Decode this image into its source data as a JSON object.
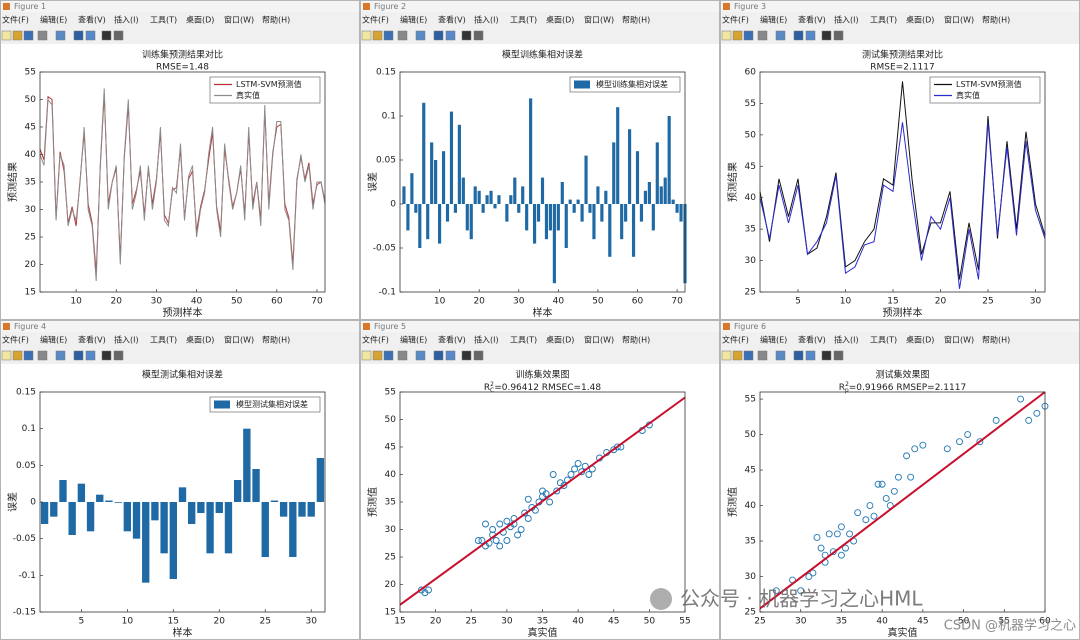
{
  "windows": [
    {
      "title": "Figure 1"
    },
    {
      "title": "Figure 2"
    },
    {
      "title": "Figure 3"
    },
    {
      "title": "Figure 4"
    },
    {
      "title": "Figure 5"
    },
    {
      "title": "Figure 6"
    }
  ],
  "menu": [
    "文件(F)",
    "编辑(E)",
    "查看(V)",
    "插入(I)",
    "工具(T)",
    "桌面(D)",
    "窗口(W)",
    "帮助(H)"
  ],
  "watermark": [
    "公众号 · 机器学习之心HML",
    "CSDN @机器学习之心"
  ],
  "chart_data": [
    {
      "type": "line",
      "title": "训练集预测结果对比",
      "subtitle": "RMSE=1.48",
      "xlabel": "预测样本",
      "ylabel": "预测结果",
      "legend": "upper right",
      "x": [
        1,
        2,
        3,
        4,
        5,
        6,
        7,
        8,
        9,
        10,
        11,
        12,
        13,
        14,
        15,
        16,
        17,
        18,
        19,
        20,
        21,
        22,
        23,
        24,
        25,
        26,
        27,
        28,
        29,
        30,
        31,
        32,
        33,
        34,
        35,
        36,
        37,
        38,
        39,
        40,
        41,
        42,
        43,
        44,
        45,
        46,
        47,
        48,
        49,
        50,
        51,
        52,
        53,
        54,
        55,
        56,
        57,
        58,
        59,
        60,
        61,
        62,
        63,
        64,
        65,
        66,
        67,
        68,
        69,
        70,
        71,
        72
      ],
      "xlim": [
        1,
        72
      ],
      "xticks": [
        10,
        20,
        30,
        40,
        50,
        60,
        70
      ],
      "ylim": [
        15,
        55
      ],
      "yticks": [
        15,
        20,
        25,
        30,
        35,
        40,
        45,
        50,
        55
      ],
      "series": [
        {
          "name": "LSTM-SVM预测值",
          "color": "#b83232",
          "values": [
            41,
            39,
            50.5,
            50,
            28.5,
            40.5,
            37,
            27.5,
            30.5,
            27,
            35.5,
            44,
            31,
            27.5,
            18.5,
            37.5,
            51,
            31,
            35,
            37.5,
            21,
            39.5,
            49,
            31,
            33.5,
            37,
            29,
            37.5,
            31,
            35.5,
            44,
            29,
            27.5,
            33.5,
            34,
            41,
            28.5,
            35.5,
            37,
            26,
            30.5,
            33.5,
            39,
            44,
            30.5,
            26,
            41,
            35.5,
            30.5,
            33,
            37.5,
            29,
            44,
            31,
            35,
            28,
            48,
            31,
            40.5,
            45,
            45.5,
            31,
            28.5,
            20,
            35.5,
            39.5,
            35.5,
            38.5,
            31,
            34.5,
            35,
            31.5
          ]
        },
        {
          "name": "真实值",
          "color": "#8c8c8c",
          "values": [
            40,
            38,
            50,
            49,
            28,
            40,
            38,
            27,
            30,
            28,
            35,
            45,
            30,
            27,
            17,
            38,
            52,
            30,
            35,
            38,
            20,
            40,
            50,
            30,
            33,
            38,
            28,
            38,
            30,
            35,
            45,
            28,
            27,
            34,
            33,
            42,
            28,
            36,
            38,
            25,
            30,
            33,
            40,
            45,
            30,
            25,
            42,
            35,
            30,
            33,
            38,
            28,
            45,
            30,
            35,
            27,
            49,
            30,
            40,
            46,
            46,
            30,
            28,
            19,
            35,
            40,
            35,
            38,
            30,
            35,
            35,
            31
          ]
        }
      ]
    },
    {
      "type": "bar",
      "title": "模型训练集相对误差",
      "xlabel": "样本",
      "ylabel": "误差",
      "legend": "upper right",
      "x": [
        1,
        2,
        3,
        4,
        5,
        6,
        7,
        8,
        9,
        10,
        11,
        12,
        13,
        14,
        15,
        16,
        17,
        18,
        19,
        20,
        21,
        22,
        23,
        24,
        25,
        26,
        27,
        28,
        29,
        30,
        31,
        32,
        33,
        34,
        35,
        36,
        37,
        38,
        39,
        40,
        41,
        42,
        43,
        44,
        45,
        46,
        47,
        48,
        49,
        50,
        51,
        52,
        53,
        54,
        55,
        56,
        57,
        58,
        59,
        60,
        61,
        62,
        63,
        64,
        65,
        66,
        67,
        68,
        69,
        70,
        71,
        72
      ],
      "xlim": [
        0,
        72
      ],
      "xticks": [
        10,
        20,
        30,
        40,
        50,
        60,
        70
      ],
      "ylim": [
        -0.1,
        0.15
      ],
      "yticks": [
        -0.1,
        -0.05,
        0,
        0.05,
        0.1,
        0.15
      ],
      "series": [
        {
          "name": "模型训练集相对误差",
          "color": "#1f6aa5",
          "values": [
            0.02,
            -0.03,
            0.035,
            -0.01,
            -0.05,
            0.115,
            -0.04,
            0.07,
            0.05,
            -0.045,
            0.06,
            -0.02,
            0.105,
            -0.01,
            0.09,
            0.03,
            -0.03,
            -0.04,
            0.02,
            0.015,
            -0.01,
            0.01,
            0.015,
            -0.005,
            0.01,
            0,
            -0.02,
            0.01,
            0.03,
            -0.01,
            0.02,
            -0.03,
            0.12,
            -0.045,
            -0.02,
            0.03,
            -0.04,
            -0.03,
            -0.09,
            -0.03,
            0.025,
            -0.05,
            0.005,
            -0.01,
            0.005,
            -0.02,
            0.055,
            -0.01,
            -0.04,
            0.02,
            -0.02,
            0.015,
            -0.06,
            0.07,
            0.11,
            -0.04,
            -0.02,
            0.085,
            -0.06,
            0.06,
            -0.02,
            0.015,
            0.025,
            -0.03,
            0.07,
            0.02,
            0.03,
            0.1,
            0.005,
            -0.01,
            -0.02,
            -0.09
          ]
        }
      ]
    },
    {
      "type": "line",
      "title": "测试集预测结果对比",
      "subtitle": "RMSE=2.1117",
      "xlabel": "预测样本",
      "ylabel": "预测结果",
      "legend": "upper right",
      "x": [
        1,
        2,
        3,
        4,
        5,
        6,
        7,
        8,
        9,
        10,
        11,
        12,
        13,
        14,
        15,
        16,
        17,
        18,
        19,
        20,
        21,
        22,
        23,
        24,
        25,
        26,
        27,
        28,
        29,
        30,
        31
      ],
      "xlim": [
        1,
        31
      ],
      "xticks": [
        5,
        10,
        15,
        20,
        25,
        30
      ],
      "ylim": [
        25,
        60
      ],
      "yticks": [
        25,
        30,
        35,
        40,
        45,
        50,
        55,
        60
      ],
      "series": [
        {
          "name": "LSTM-SVM预测值",
          "color": "#111111",
          "values": [
            41,
            33,
            43,
            37,
            43,
            31,
            32,
            37,
            44,
            29,
            30,
            33,
            35,
            43,
            42,
            58.5,
            43,
            31,
            36,
            36,
            41,
            27,
            36,
            28.5,
            53,
            33.5,
            49,
            35,
            50.5,
            39,
            34
          ]
        },
        {
          "name": "真实值",
          "color": "#2b2bd0",
          "values": [
            40,
            33.5,
            42,
            36,
            42,
            31,
            33,
            36,
            43.5,
            28,
            29,
            32.5,
            33,
            42,
            41,
            52,
            40,
            30,
            37,
            35,
            40,
            25.5,
            35,
            27,
            52,
            34,
            48,
            34,
            49,
            38,
            33.5
          ]
        }
      ]
    },
    {
      "type": "bar",
      "title": "模型测试集相对误差",
      "xlabel": "样本",
      "ylabel": "误差",
      "legend": "upper right",
      "x": [
        1,
        2,
        3,
        4,
        5,
        6,
        7,
        8,
        9,
        10,
        11,
        12,
        13,
        14,
        15,
        16,
        17,
        18,
        19,
        20,
        21,
        22,
        23,
        24,
        25,
        26,
        27,
        28,
        29,
        30,
        31
      ],
      "xlim": [
        0.5,
        31.5
      ],
      "xticks": [
        5,
        10,
        15,
        20,
        25,
        30
      ],
      "ylim": [
        -0.15,
        0.15
      ],
      "yticks": [
        -0.15,
        -0.1,
        -0.05,
        0,
        0.05,
        0.1,
        0.15
      ],
      "series": [
        {
          "name": "模型测试集相对误差",
          "color": "#1f6aa5",
          "values": [
            -0.03,
            -0.02,
            0.03,
            -0.045,
            0.025,
            -0.04,
            0.01,
            0.002,
            -0.001,
            -0.04,
            -0.05,
            -0.11,
            -0.025,
            -0.07,
            -0.105,
            0.02,
            -0.03,
            -0.015,
            -0.07,
            -0.015,
            -0.07,
            0.03,
            0.1,
            0.045,
            -0.075,
            0.002,
            -0.02,
            -0.075,
            -0.02,
            -0.02,
            0.06
          ]
        }
      ]
    },
    {
      "type": "scatter",
      "title": "训练集效果图",
      "subtitle": [
        "R",
        "2",
        "C",
        "=0.96412  RMSEC=1.48"
      ],
      "xlabel": "真实值",
      "ylabel": "预测值",
      "color": "#1f77b4",
      "x": [
        18,
        18.5,
        19,
        26,
        26.5,
        27,
        27,
        27.5,
        28,
        28,
        28.5,
        29,
        29,
        29.5,
        30,
        30,
        30.5,
        31,
        31,
        31.5,
        32,
        32.5,
        33,
        33,
        33.5,
        34,
        34.5,
        35,
        35,
        35.5,
        36,
        36.5,
        37,
        37.5,
        38,
        38.5,
        39,
        39.5,
        40,
        40.5,
        41,
        41.5,
        42,
        43,
        44,
        45,
        45.5,
        46,
        49,
        50
      ],
      "values": [
        19,
        18.5,
        19,
        28,
        28,
        27,
        31,
        27.5,
        29,
        30,
        28,
        27,
        31,
        29.5,
        28,
        31.5,
        30.5,
        31,
        32,
        29,
        30,
        33,
        32,
        35.5,
        34,
        33.5,
        35,
        36,
        37,
        36.5,
        35,
        40,
        37,
        38.5,
        38,
        39,
        40,
        41,
        42,
        40.5,
        41.5,
        40,
        41,
        43,
        44,
        44.5,
        45,
        45,
        48,
        49
      ],
      "fit_line": {
        "color": "#c8102e",
        "x": [
          15,
          55
        ],
        "y": [
          16.3,
          54
        ]
      },
      "xlim": [
        15,
        55
      ],
      "xticks": [
        15,
        20,
        25,
        30,
        35,
        40,
        45,
        50,
        55
      ],
      "ylim": [
        15,
        55
      ],
      "yticks": [
        15,
        20,
        25,
        30,
        35,
        40,
        45,
        50,
        55
      ]
    },
    {
      "type": "scatter",
      "title": "测试集效果图",
      "subtitle": [
        "R",
        "2",
        "p",
        "=0.91966  RMSEP=2.1117"
      ],
      "xlabel": "真实值",
      "ylabel": "预测值",
      "color": "#1f77b4",
      "x": [
        27,
        29,
        30,
        31,
        31.5,
        32,
        32.5,
        33,
        33,
        33.5,
        34,
        34.5,
        35,
        35,
        35.5,
        36,
        36.5,
        37,
        38,
        38.5,
        39,
        39.5,
        40,
        40.5,
        41,
        41.5,
        42,
        43,
        43.5,
        44,
        45,
        48,
        49.5,
        50.5,
        52,
        54,
        57,
        58,
        59,
        60
      ],
      "values": [
        28,
        29.5,
        28,
        30,
        30.5,
        35.5,
        34,
        33,
        32,
        36,
        33.5,
        36,
        33,
        37,
        34,
        36,
        35,
        39,
        38,
        40,
        38.5,
        43,
        43,
        41,
        40,
        42,
        44,
        47,
        44,
        48,
        48.5,
        48,
        49,
        50,
        49,
        52,
        55,
        52,
        53,
        54
      ],
      "fit_line": {
        "color": "#c8102e",
        "x": [
          25,
          60
        ],
        "y": [
          25.5,
          56
        ]
      },
      "xlim": [
        25,
        60
      ],
      "xticks": [
        25,
        30,
        35,
        40,
        45,
        50,
        55,
        60
      ],
      "ylim": [
        25,
        56
      ],
      "yticks": [
        25,
        30,
        35,
        40,
        45,
        50,
        55
      ]
    }
  ]
}
